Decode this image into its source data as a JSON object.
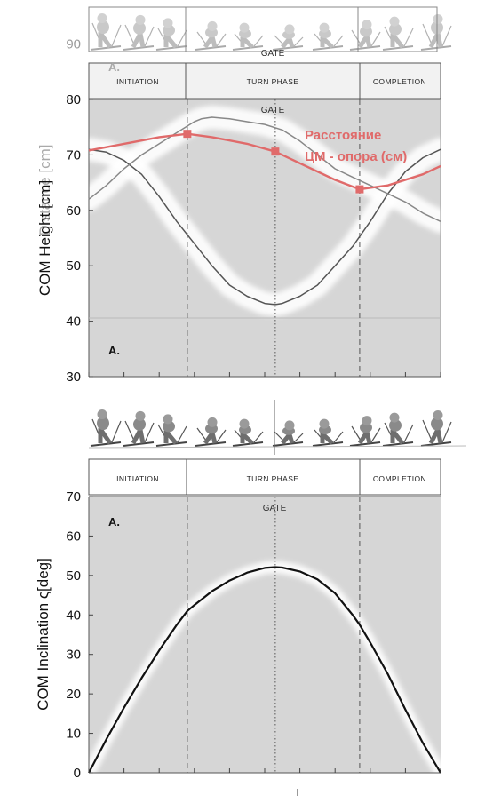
{
  "chart_data": [
    {
      "type": "line",
      "name": "com-height-panel",
      "panel_label": "A.",
      "panel_label_faded": "A.",
      "ylabel": "COM Height [cm]",
      "ylabel_faded": "Distance [cm]",
      "ylim": [
        30,
        90
      ],
      "yticks": [
        30,
        40,
        50,
        60,
        70,
        80,
        90
      ],
      "x_range": [
        0,
        100
      ],
      "grid": false,
      "phases": {
        "initiation": "INITIATION",
        "turn": "TURN PHASE",
        "completion": "COMPLETION",
        "gate_label": "GATE",
        "gate_label_faded": "GATE",
        "phase_boundaries": [
          28,
          77
        ],
        "gate_x": 53
      },
      "series": [
        {
          "name": "",
          "color": "#555555",
          "x": [
            0,
            5,
            10,
            15,
            20,
            25,
            30,
            35,
            40,
            45,
            50,
            53,
            55,
            60,
            65,
            70,
            75,
            80,
            85,
            90,
            95,
            100
          ],
          "y": [
            71,
            70.5,
            69,
            66.5,
            62.5,
            58,
            54,
            50,
            46.5,
            44.5,
            43.2,
            43,
            43.2,
            44.5,
            46.5,
            50,
            53.5,
            58,
            63,
            67,
            69.5,
            71
          ]
        },
        {
          "name": "",
          "color": "#888888",
          "x": [
            0,
            5,
            10,
            15,
            20,
            25,
            30,
            32,
            35,
            40,
            45,
            50,
            55,
            60,
            65,
            70,
            75,
            80,
            85,
            90,
            95,
            100
          ],
          "y": [
            62,
            64.5,
            67.5,
            70,
            72,
            74,
            76,
            76.5,
            76.8,
            76.5,
            76,
            75.5,
            74.5,
            72.5,
            70,
            67.5,
            66,
            64.5,
            63,
            61.5,
            59.5,
            58
          ]
        },
        {
          "name": "Расстояние ЦМ - опора (см)",
          "color": "#e06a6a",
          "x": [
            0,
            10,
            20,
            28,
            35,
            45,
            53,
            60,
            70,
            77,
            85,
            95,
            100
          ],
          "y": [
            70.8,
            72,
            73.2,
            73.8,
            73.2,
            72,
            70.6,
            68.5,
            65.5,
            63.8,
            64.5,
            66.5,
            68
          ],
          "markers_x": [
            28,
            53,
            77
          ],
          "markers_y": [
            73.8,
            70.6,
            63.8
          ]
        }
      ]
    },
    {
      "type": "line",
      "name": "com-inclination-panel",
      "panel_label": "A.",
      "ylabel": "COM Inclination ς[deg]",
      "ylim": [
        0,
        70
      ],
      "yticks": [
        0,
        10,
        20,
        30,
        40,
        50,
        60,
        70
      ],
      "x_range": [
        0,
        100
      ],
      "grid": false,
      "phases": {
        "initiation": "INITIATION",
        "turn": "TURN PHASE",
        "completion": "COMPLETION",
        "gate_label": "GATE",
        "phase_boundaries": [
          28,
          77
        ],
        "gate_x": 53
      },
      "series": [
        {
          "name": "",
          "color": "#111111",
          "x": [
            0,
            5,
            10,
            15,
            20,
            25,
            28,
            30,
            35,
            40,
            45,
            50,
            53,
            55,
            60,
            65,
            70,
            75,
            77,
            80,
            85,
            90,
            95,
            100
          ],
          "y": [
            0,
            8.5,
            16.5,
            24,
            31,
            37.5,
            41,
            42.5,
            46,
            48.7,
            50.7,
            51.9,
            52.1,
            52,
            51,
            49,
            45.5,
            40,
            37.5,
            33,
            25,
            16,
            7.5,
            0
          ]
        }
      ]
    }
  ]
}
